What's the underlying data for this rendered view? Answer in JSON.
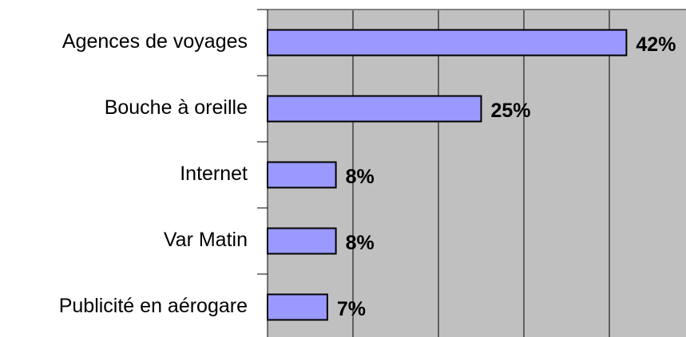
{
  "chart_data": {
    "type": "hbar",
    "categories": [
      "Agences de voyages",
      "Bouche à oreille",
      "Internet",
      "Var Matin",
      "Publicité en aérogare"
    ],
    "values": [
      42,
      25,
      8,
      8,
      7
    ],
    "value_labels": [
      "42%",
      "25%",
      "8%",
      "8%",
      "7%"
    ],
    "color": "#9999ff",
    "xlim": [
      0,
      50
    ],
    "xticks": [
      0,
      10,
      20,
      30,
      40,
      50
    ],
    "grid": true
  }
}
